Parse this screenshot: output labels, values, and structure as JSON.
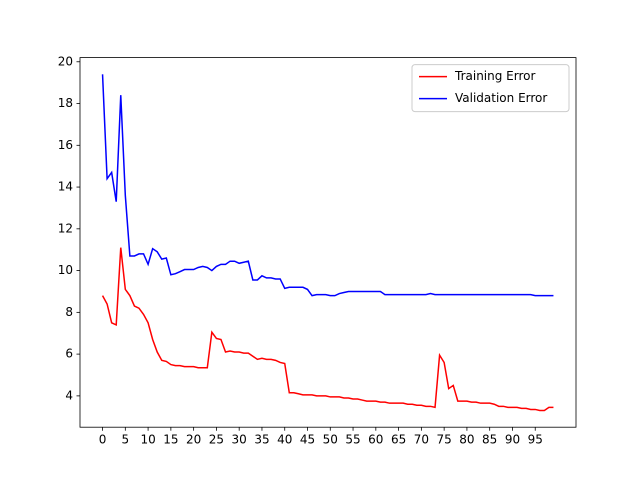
{
  "chart_data": {
    "type": "line",
    "x": [
      0,
      1,
      2,
      3,
      4,
      5,
      6,
      7,
      8,
      9,
      10,
      11,
      12,
      13,
      14,
      15,
      16,
      17,
      18,
      19,
      20,
      21,
      22,
      23,
      24,
      25,
      26,
      27,
      28,
      29,
      30,
      31,
      32,
      33,
      34,
      35,
      36,
      37,
      38,
      39,
      40,
      41,
      42,
      43,
      44,
      45,
      46,
      47,
      48,
      49,
      50,
      51,
      52,
      53,
      54,
      55,
      56,
      57,
      58,
      59,
      60,
      61,
      62,
      63,
      64,
      65,
      66,
      67,
      68,
      69,
      70,
      71,
      72,
      73,
      74,
      75,
      76,
      77,
      78,
      79,
      80,
      81,
      82,
      83,
      84,
      85,
      86,
      87,
      88,
      89,
      90,
      91,
      92,
      93,
      94,
      95,
      96,
      97,
      98,
      99
    ],
    "series": [
      {
        "name": "Training Error",
        "color": "#ff0000",
        "values": [
          8.8,
          8.4,
          7.5,
          7.4,
          11.1,
          9.1,
          8.8,
          8.3,
          8.2,
          7.9,
          7.5,
          6.7,
          6.1,
          5.7,
          5.65,
          5.5,
          5.45,
          5.45,
          5.4,
          5.4,
          5.4,
          5.35,
          5.35,
          5.35,
          7.05,
          6.75,
          6.7,
          6.1,
          6.15,
          6.1,
          6.1,
          6.05,
          6.05,
          5.9,
          5.75,
          5.8,
          5.75,
          5.75,
          5.7,
          5.6,
          5.55,
          4.15,
          4.15,
          4.1,
          4.05,
          4.05,
          4.05,
          4.0,
          4.0,
          4.0,
          3.95,
          3.95,
          3.95,
          3.9,
          3.9,
          3.85,
          3.85,
          3.8,
          3.75,
          3.75,
          3.75,
          3.7,
          3.7,
          3.65,
          3.65,
          3.65,
          3.65,
          3.6,
          3.6,
          3.55,
          3.55,
          3.5,
          3.5,
          3.45,
          5.95,
          5.6,
          4.35,
          4.5,
          3.75,
          3.75,
          3.75,
          3.7,
          3.7,
          3.65,
          3.65,
          3.65,
          3.6,
          3.5,
          3.5,
          3.45,
          3.45,
          3.45,
          3.4,
          3.4,
          3.35,
          3.35,
          3.3,
          3.3,
          3.45,
          3.45
        ]
      },
      {
        "name": "Validation Error",
        "color": "#0000ff",
        "values": [
          19.4,
          14.4,
          14.7,
          13.3,
          18.4,
          13.6,
          10.7,
          10.7,
          10.8,
          10.8,
          10.3,
          11.05,
          10.9,
          10.55,
          10.6,
          9.8,
          9.85,
          9.95,
          10.05,
          10.05,
          10.05,
          10.15,
          10.2,
          10.15,
          10.0,
          10.2,
          10.3,
          10.3,
          10.45,
          10.45,
          10.35,
          10.4,
          10.45,
          9.55,
          9.55,
          9.75,
          9.65,
          9.65,
          9.6,
          9.6,
          9.15,
          9.2,
          9.2,
          9.2,
          9.2,
          9.1,
          8.8,
          8.85,
          8.85,
          8.85,
          8.8,
          8.8,
          8.9,
          8.95,
          9.0,
          9.0,
          9.0,
          9.0,
          9.0,
          9.0,
          9.0,
          9.0,
          8.85,
          8.85,
          8.85,
          8.85,
          8.85,
          8.85,
          8.85,
          8.85,
          8.85,
          8.85,
          8.9,
          8.85,
          8.85,
          8.85,
          8.85,
          8.85,
          8.85,
          8.85,
          8.85,
          8.85,
          8.85,
          8.85,
          8.85,
          8.85,
          8.85,
          8.85,
          8.85,
          8.85,
          8.85,
          8.85,
          8.85,
          8.85,
          8.85,
          8.8,
          8.8,
          8.8,
          8.8,
          8.8
        ]
      }
    ],
    "xlim": [
      -4.95,
      103.95
    ],
    "xticks": [
      0,
      5,
      10,
      15,
      20,
      25,
      30,
      35,
      40,
      45,
      50,
      55,
      60,
      65,
      70,
      75,
      80,
      85,
      90,
      95
    ],
    "ylim": [
      2.5,
      20.2
    ],
    "yticks": [
      4,
      6,
      8,
      10,
      12,
      14,
      16,
      18,
      20
    ],
    "legend": "upper right"
  }
}
